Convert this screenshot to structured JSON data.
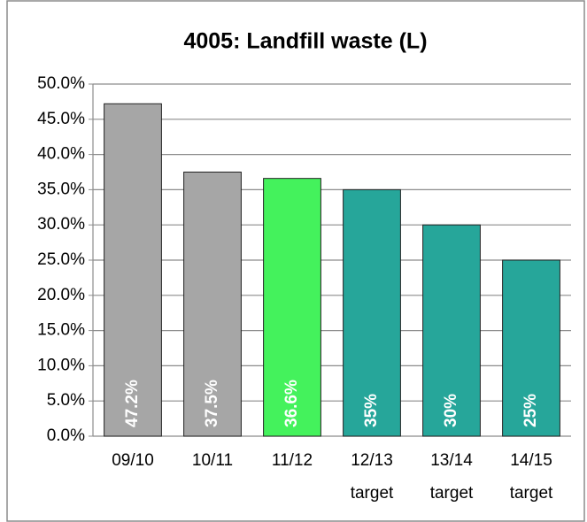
{
  "chart_data": {
    "type": "bar",
    "title": "4005: Landfill waste (L)",
    "categories": [
      "09/10",
      "10/11",
      "11/12",
      "12/13 target",
      "13/14 target",
      "14/15 target"
    ],
    "values": [
      47.2,
      37.5,
      36.6,
      35,
      30,
      25
    ],
    "value_labels": [
      "47.2%",
      "37.5%",
      "36.6%",
      "35%",
      "30%",
      "25%"
    ],
    "colors": [
      "#a6a6a6",
      "#a6a6a6",
      "#44f25c",
      "#26a69a",
      "#26a69a",
      "#26a69a"
    ],
    "ylim": [
      0,
      50
    ],
    "yticks": [
      {
        "value": 0,
        "label": "0.0%"
      },
      {
        "value": 5,
        "label": "5.0%"
      },
      {
        "value": 10,
        "label": "10.0%"
      },
      {
        "value": 15,
        "label": "15.0%"
      },
      {
        "value": 20,
        "label": "20.0%"
      },
      {
        "value": 25,
        "label": "25.0%"
      },
      {
        "value": 30,
        "label": "30.0%"
      },
      {
        "value": 35,
        "label": "35.0%"
      },
      {
        "value": 40,
        "label": "40.0%"
      },
      {
        "value": 45,
        "label": "45.0%"
      },
      {
        "value": 50,
        "label": "50.0%"
      }
    ],
    "grid": true
  }
}
